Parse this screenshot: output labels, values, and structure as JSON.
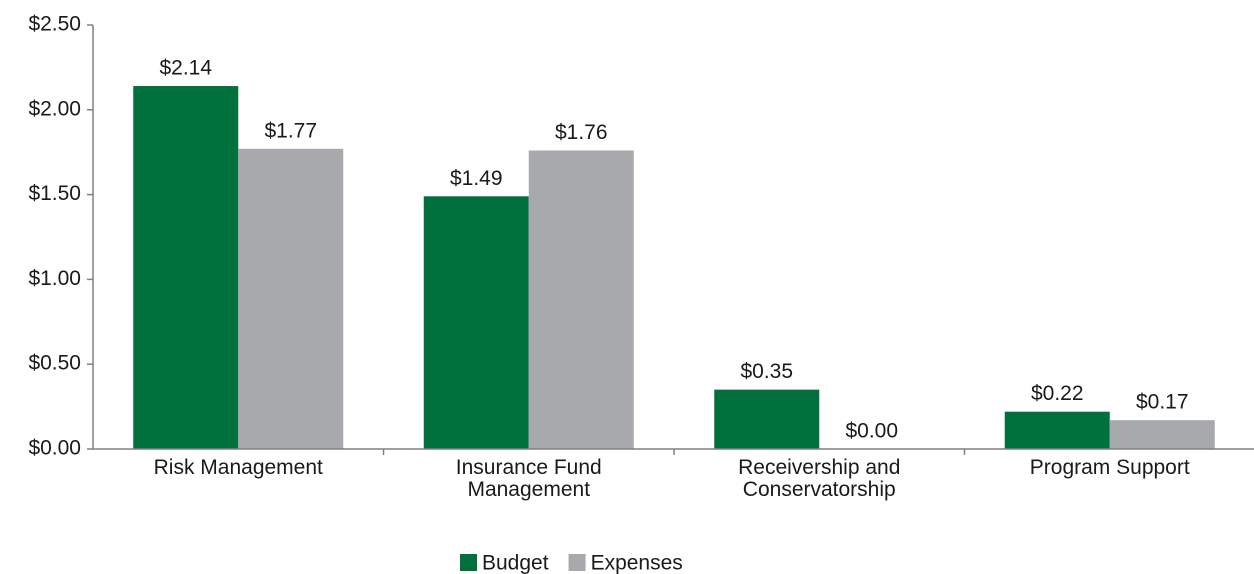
{
  "chart_data": {
    "type": "bar",
    "categories": [
      "Risk Management",
      "Insurance Fund Management",
      "Receivership and Conservatorship",
      "Program Support"
    ],
    "series": [
      {
        "name": "Budget",
        "color": "#00703c",
        "values": [
          2.14,
          1.49,
          0.35,
          0.22
        ],
        "value_labels": [
          "$2.14",
          "$1.49",
          "$0.35",
          "$0.22"
        ]
      },
      {
        "name": "Expenses",
        "color": "#a7a9ac",
        "values": [
          1.77,
          1.76,
          0.0,
          0.17
        ],
        "value_labels": [
          "$1.77",
          "$1.76",
          "$0.00",
          "$0.17"
        ]
      }
    ],
    "ylim": [
      0,
      2.5
    ],
    "yticks": [
      {
        "value": 0,
        "label": "$0.00"
      },
      {
        "value": 0.5,
        "label": "$0.50"
      },
      {
        "value": 1,
        "label": "$1.00"
      },
      {
        "value": 1.5,
        "label": "$1.50"
      },
      {
        "value": 2,
        "label": "$2.00"
      },
      {
        "value": 2.5,
        "label": "$2.50"
      }
    ],
    "legend": "bottom"
  }
}
